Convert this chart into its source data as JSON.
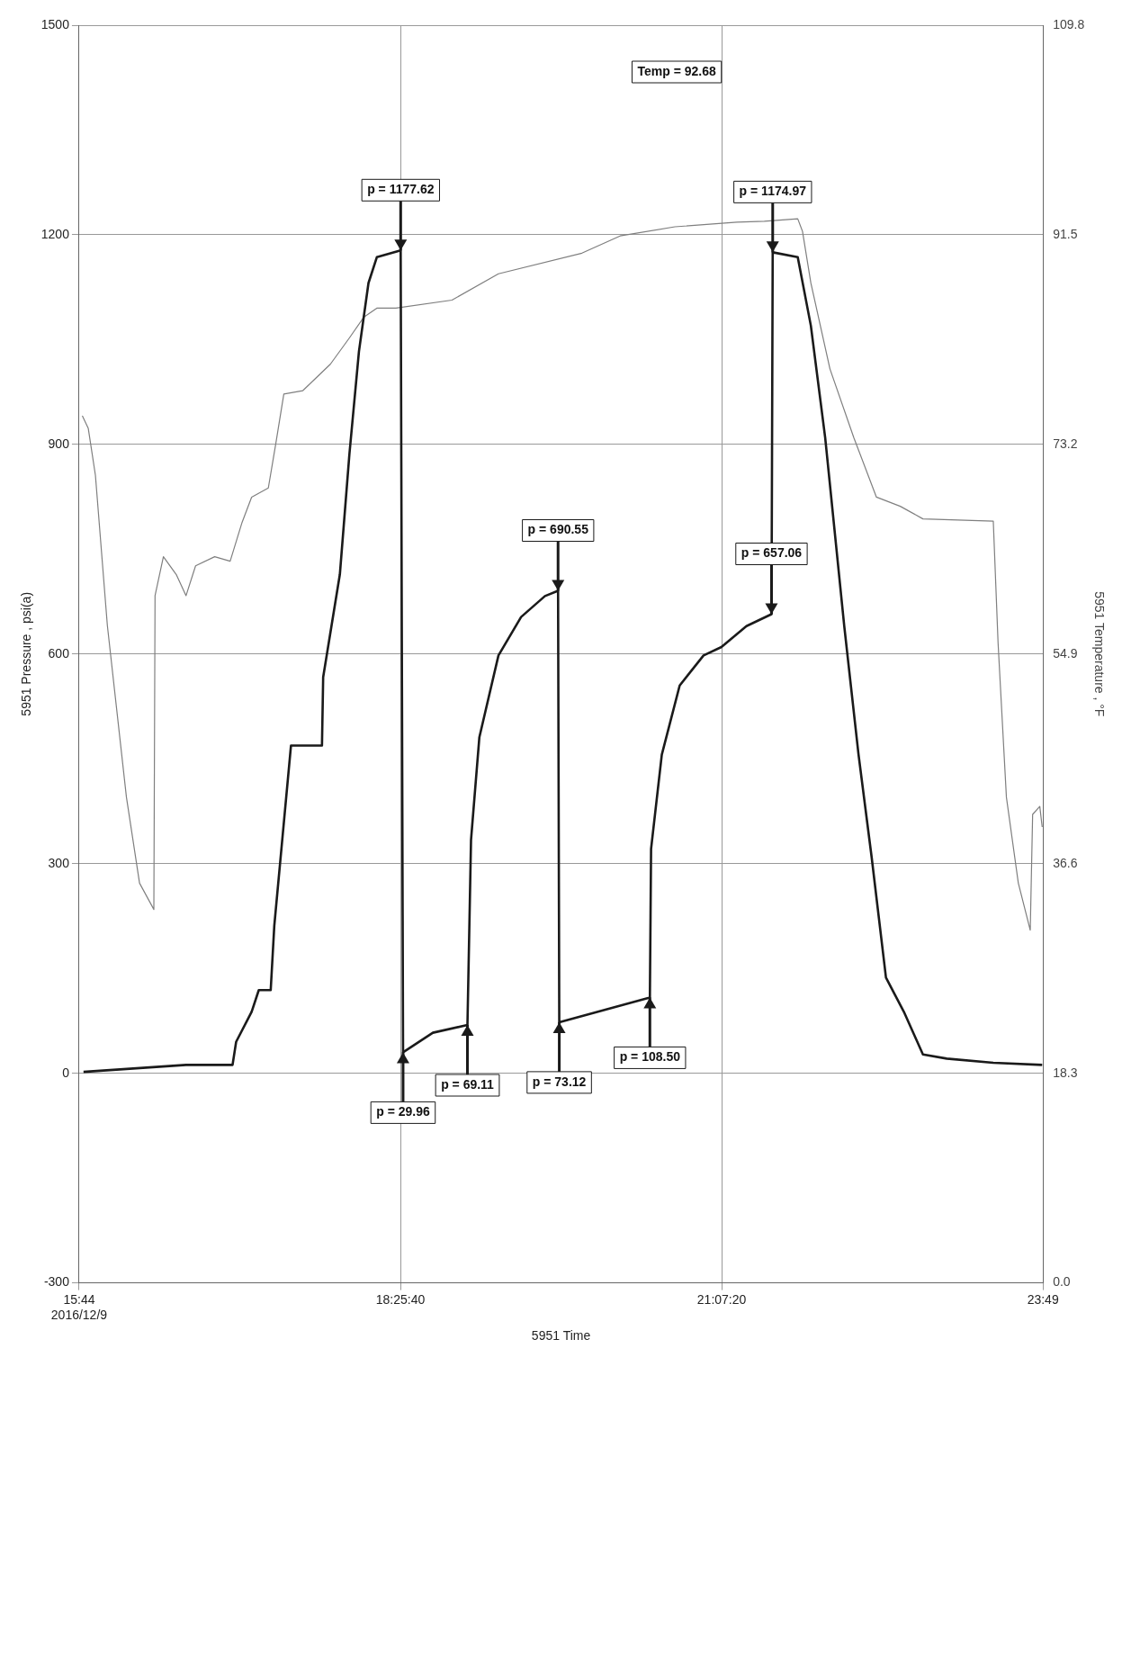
{
  "chart_data": {
    "type": "line",
    "xlabel": "5951 Time",
    "ylabel": "5951 Pressure , psi(a)",
    "y2label": "5951 Temperature , °F",
    "xlim": [
      15.7333,
      23.8167
    ],
    "xticks": [
      {
        "value": 15.7333,
        "label": "15:44\n2016/12/9"
      },
      {
        "value": 18.4278,
        "label": "18:25:40"
      },
      {
        "value": 21.1222,
        "label": "21:07:20"
      },
      {
        "value": 23.8167,
        "label": "23:49"
      }
    ],
    "ylim": [
      -300,
      1500
    ],
    "yticks": [
      -300,
      0,
      300,
      600,
      900,
      1200,
      1500
    ],
    "y2lim": [
      0,
      109.8
    ],
    "y2ticks": [
      {
        "value": 0,
        "label": "0.0"
      },
      18.3,
      36.6,
      54.9,
      73.2,
      91.5,
      109.8
    ],
    "grid": true,
    "series": [
      {
        "color": "#1a1a1a",
        "x": [
          15.77,
          16.63,
          17.02,
          17.05,
          17.18,
          17.24,
          17.34,
          17.37,
          17.51,
          17.77,
          17.78,
          17.92,
          18.0,
          18.08,
          18.16,
          18.23,
          18.43,
          18.45,
          18.7,
          18.99,
          19.02,
          19.09,
          19.25,
          19.44,
          19.64,
          19.75,
          19.76,
          20.52,
          20.53,
          20.62,
          20.77,
          20.97,
          21.12,
          21.33,
          21.54,
          21.55,
          21.76,
          21.87,
          21.99,
          22.15,
          22.27,
          22.38,
          22.5,
          22.65,
          22.81,
          23.01,
          23.4,
          23.81
        ],
        "values": [
          2,
          12,
          12,
          45,
          88,
          119,
          119,
          211,
          469,
          469,
          567,
          714,
          886,
          1033,
          1131,
          1168,
          1177.62,
          29.96,
          58,
          69.11,
          334,
          481,
          598,
          653,
          683,
          690.55,
          73.12,
          108.5,
          321,
          456,
          555,
          598,
          610,
          640,
          657.06,
          1174.97,
          1168,
          1070,
          910,
          640,
          456,
          309,
          137,
          88,
          27,
          21,
          15,
          12
        ]
      },
      {
        "color": "#7f7f7f",
        "axis": "y2",
        "x": [
          15.76,
          15.81,
          15.87,
          15.97,
          16.13,
          16.24,
          16.36,
          16.37,
          16.44,
          16.55,
          16.63,
          16.71,
          16.87,
          17.0,
          17.1,
          17.18,
          17.32,
          17.38,
          17.45,
          17.61,
          17.84,
          18.0,
          18.12,
          18.23,
          18.39,
          18.86,
          19.25,
          19.95,
          20.27,
          20.73,
          21.25,
          21.48,
          21.76,
          21.8,
          21.87,
          22.03,
          22.23,
          22.42,
          22.62,
          22.81,
          23.4,
          23.44,
          23.51,
          23.61,
          23.71,
          23.73,
          23.79,
          23.81
        ],
        "values": [
          75.7,
          74.6,
          70.5,
          57.4,
          42.4,
          34.9,
          32.6,
          60,
          63.4,
          61.8,
          60,
          62.6,
          63.4,
          63,
          66.4,
          68.6,
          69.4,
          73.1,
          77.6,
          77.9,
          80.2,
          82.5,
          84.3,
          85.1,
          85.1,
          85.8,
          88.1,
          89.9,
          91.4,
          92.2,
          92.6,
          92.68,
          92.9,
          91.8,
          87.3,
          79.8,
          73.8,
          68.6,
          67.8,
          66.7,
          66.5,
          55.9,
          42.4,
          34.9,
          30.8,
          40.9,
          41.6,
          39.8
        ]
      }
    ],
    "annotations": [
      {
        "text": "p = 1177.62",
        "x": 18.43,
        "y": 1177.62
      },
      {
        "text": "p = 29.96",
        "x": 18.45,
        "y": 29.96
      },
      {
        "text": "p = 69.11",
        "x": 18.99,
        "y": 69.11
      },
      {
        "text": "p = 690.55",
        "x": 19.75,
        "y": 690.55
      },
      {
        "text": "p = 73.12",
        "x": 19.76,
        "y": 73.12
      },
      {
        "text": "p = 108.50",
        "x": 20.52,
        "y": 108.5
      },
      {
        "text": "p = 657.06",
        "x": 21.54,
        "y": 657.06
      },
      {
        "text": "p = 1174.97",
        "x": 21.55,
        "y": 1174.97
      },
      "Temp = 92.68"
    ]
  }
}
